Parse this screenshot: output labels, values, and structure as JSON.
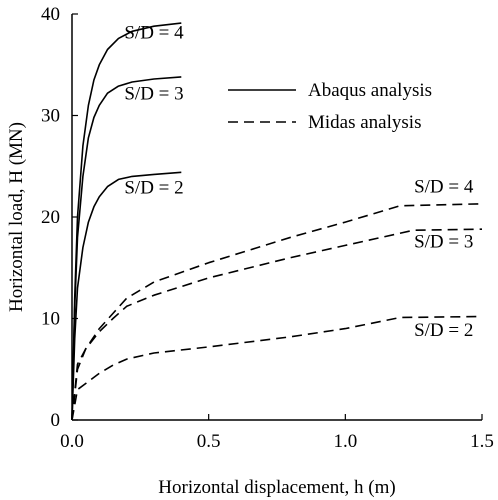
{
  "chart_data": {
    "type": "line",
    "xlabel": "Horizontal displacement, h (m)",
    "ylabel": "Horizontal load, H (MN)",
    "xlim": [
      0,
      1.5
    ],
    "ylim": [
      0,
      40
    ],
    "xticks": [
      "0.0",
      "0.5",
      "1.0",
      "1.5"
    ],
    "yticks": [
      "0",
      "10",
      "20",
      "30",
      "40"
    ],
    "grid": false,
    "legend_position": "top-right",
    "legend": [
      {
        "label": "Abaqus analysis",
        "style": "solid"
      },
      {
        "label": "Midas analysis",
        "style": "dashed"
      }
    ],
    "series": [
      {
        "group": "Abaqus analysis",
        "annotation": "S/D = 4",
        "style": "solid",
        "points": [
          [
            0,
            0
          ],
          [
            0.01,
            12
          ],
          [
            0.02,
            20
          ],
          [
            0.04,
            27
          ],
          [
            0.06,
            31
          ],
          [
            0.08,
            33.5
          ],
          [
            0.1,
            35
          ],
          [
            0.13,
            36.5
          ],
          [
            0.17,
            37.6
          ],
          [
            0.22,
            38.3
          ],
          [
            0.3,
            38.8
          ],
          [
            0.4,
            39.1
          ]
        ]
      },
      {
        "group": "Abaqus analysis",
        "annotation": "S/D = 3",
        "style": "solid",
        "points": [
          [
            0,
            0
          ],
          [
            0.01,
            11
          ],
          [
            0.02,
            18
          ],
          [
            0.04,
            24
          ],
          [
            0.06,
            27.8
          ],
          [
            0.08,
            29.8
          ],
          [
            0.1,
            31
          ],
          [
            0.13,
            32.2
          ],
          [
            0.17,
            32.9
          ],
          [
            0.22,
            33.3
          ],
          [
            0.3,
            33.6
          ],
          [
            0.4,
            33.8
          ]
        ]
      },
      {
        "group": "Abaqus analysis",
        "annotation": "S/D = 2",
        "style": "solid",
        "points": [
          [
            0,
            0
          ],
          [
            0.01,
            8
          ],
          [
            0.02,
            13
          ],
          [
            0.04,
            17
          ],
          [
            0.06,
            19.5
          ],
          [
            0.08,
            21
          ],
          [
            0.1,
            22
          ],
          [
            0.13,
            23
          ],
          [
            0.17,
            23.7
          ],
          [
            0.22,
            24
          ],
          [
            0.3,
            24.2
          ],
          [
            0.4,
            24.4
          ]
        ]
      },
      {
        "group": "Midas analysis",
        "annotation": "S/D = 4",
        "style": "dashed",
        "points": [
          [
            0,
            0
          ],
          [
            0.02,
            5
          ],
          [
            0.05,
            7
          ],
          [
            0.1,
            9
          ],
          [
            0.15,
            10.5
          ],
          [
            0.2,
            12
          ],
          [
            0.3,
            13.6
          ],
          [
            0.5,
            15.5
          ],
          [
            0.8,
            18
          ],
          [
            1.0,
            19.5
          ],
          [
            1.2,
            21.1
          ],
          [
            1.5,
            21.3
          ]
        ]
      },
      {
        "group": "Midas analysis",
        "annotation": "S/D = 3",
        "style": "dashed",
        "points": [
          [
            0,
            0
          ],
          [
            0.02,
            5.5
          ],
          [
            0.05,
            7
          ],
          [
            0.1,
            8.7
          ],
          [
            0.15,
            10
          ],
          [
            0.2,
            11.2
          ],
          [
            0.3,
            12.3
          ],
          [
            0.5,
            14
          ],
          [
            0.8,
            16
          ],
          [
            1.0,
            17.2
          ],
          [
            1.25,
            18.7
          ],
          [
            1.5,
            18.8
          ]
        ]
      },
      {
        "group": "Midas analysis",
        "annotation": "S/D = 2",
        "style": "dashed",
        "points": [
          [
            0,
            0
          ],
          [
            0.02,
            3
          ],
          [
            0.05,
            3.6
          ],
          [
            0.1,
            4.6
          ],
          [
            0.15,
            5.4
          ],
          [
            0.2,
            6
          ],
          [
            0.3,
            6.6
          ],
          [
            0.5,
            7.2
          ],
          [
            0.8,
            8.2
          ],
          [
            1.0,
            9
          ],
          [
            1.2,
            10.1
          ],
          [
            1.5,
            10.2
          ]
        ]
      }
    ],
    "annotations": [
      {
        "text": "S/D = 4",
        "x": 0.3,
        "y": 37.6
      },
      {
        "text": "S/D = 3",
        "x": 0.3,
        "y": 31.6
      },
      {
        "text": "S/D = 2",
        "x": 0.3,
        "y": 22.3
      },
      {
        "text": "S/D = 4",
        "x": 1.36,
        "y": 22.4
      },
      {
        "text": "S/D = 3",
        "x": 1.36,
        "y": 17.0
      },
      {
        "text": "S/D = 2",
        "x": 1.36,
        "y": 8.3
      }
    ]
  }
}
